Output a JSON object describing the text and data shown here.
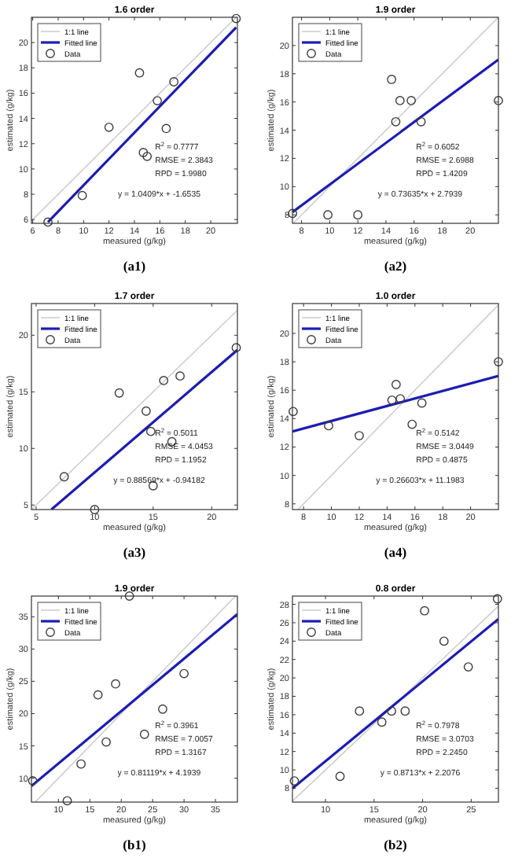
{
  "chart_data": [
    {
      "type": "scatter",
      "title": "1.6 order",
      "xlabel": "measured (g/kg)",
      "ylabel": "estimated (g/kg)",
      "xlim": [
        5.9,
        22.1
      ],
      "ylim": [
        5.7,
        22
      ],
      "xticks": [
        6,
        8,
        10,
        12,
        14,
        16,
        18,
        20
      ],
      "yticks": [
        6,
        8,
        10,
        12,
        14,
        16,
        18,
        20
      ],
      "legend": "top left",
      "annotations": [
        "R$^{2}$ = 0.7777",
        "RMSE = 2.3843",
        "RPD = 1.9980",
        "y = 1.0409*x + -1.6535",
        "(a1)"
      ],
      "series": [
        {
          "name": "1:1 line",
          "type": "line",
          "color": "#c8c8c8",
          "x": [
            5.9,
            22
          ],
          "values": [
            5.9,
            22
          ]
        },
        {
          "name": "Fitted line",
          "type": "line",
          "color": "#1c1cb4",
          "x": [
            7.2,
            22
          ],
          "values": [
            5.8,
            21.2
          ]
        },
        {
          "name": "Data",
          "type": "scatter",
          "marker": "circle",
          "color": "#3c3c3c",
          "x": [
            7.2,
            9.9,
            12.0,
            14.4,
            14.7,
            15.0,
            15.8,
            16.5,
            17.1,
            22.0
          ],
          "values": [
            5.8,
            7.9,
            13.3,
            17.6,
            11.3,
            11.0,
            15.4,
            13.2,
            16.9,
            21.9
          ]
        }
      ]
    },
    {
      "type": "scatter",
      "title": "1.9 order",
      "xlabel": "measured (g/kg)",
      "ylabel": "estimated (g/kg)",
      "xlim": [
        7.35,
        22
      ],
      "ylim": [
        7.4,
        22
      ],
      "xticks": [
        8,
        10,
        12,
        14,
        16,
        18,
        20
      ],
      "yticks": [
        8,
        10,
        12,
        14,
        16,
        18,
        20
      ],
      "legend": "top left",
      "annotations": [
        "R$^{2}$ = 0.6052",
        "RMSE = 2.6988",
        "RPD = 1.4209",
        "y = 0.73635*x + 2.7939",
        "(a2)"
      ],
      "series": [
        {
          "name": "1:1 line",
          "type": "line",
          "color": "#c8c8c8",
          "x": [
            7.4,
            22
          ],
          "values": [
            7.4,
            22
          ]
        },
        {
          "name": "Fitted line",
          "type": "line",
          "color": "#1c1cb4",
          "x": [
            7.36,
            22
          ],
          "values": [
            8.2,
            19.0
          ]
        },
        {
          "name": "Data",
          "type": "scatter",
          "marker": "circle",
          "color": "#3c3c3c",
          "x": [
            7.36,
            9.87,
            12.0,
            14.4,
            14.7,
            15.0,
            15.8,
            16.5,
            22.0
          ],
          "values": [
            8.1,
            8.0,
            8.0,
            17.6,
            14.6,
            16.1,
            16.1,
            14.6,
            16.1
          ]
        }
      ]
    },
    {
      "type": "scatter",
      "title": "1.7 order",
      "xlabel": "measured (g/kg)",
      "ylabel": "estimated (g/kg)",
      "xlim": [
        4.6,
        22.2
      ],
      "ylim": [
        4.6,
        22.8
      ],
      "xticks": [
        5,
        10,
        15,
        20
      ],
      "yticks": [
        5,
        10,
        15,
        20
      ],
      "legend": "top left",
      "annotations": [
        "R$^{2}$ = 0.5011",
        "RMSE = 4.0453",
        "RPD = 1.1952",
        "y = 0.88569*x + -0.94182",
        "(a3)"
      ],
      "series": [
        {
          "name": "1:1 line",
          "type": "line",
          "color": "#c8c8c8",
          "x": [
            4.6,
            22.2
          ],
          "values": [
            4.6,
            22.2
          ]
        },
        {
          "name": "Fitted line",
          "type": "line",
          "color": "#1c1cb4",
          "x": [
            6.3,
            22.2
          ],
          "values": [
            4.6,
            18.7
          ]
        },
        {
          "name": "Data",
          "type": "scatter",
          "marker": "circle",
          "color": "#3c3c3c",
          "x": [
            7.4,
            10.0,
            12.1,
            14.4,
            14.8,
            15.0,
            15.9,
            16.6,
            17.3,
            22.1
          ],
          "values": [
            7.5,
            4.6,
            14.9,
            13.3,
            11.5,
            6.7,
            16.0,
            10.6,
            16.4,
            18.9
          ]
        }
      ]
    },
    {
      "type": "scatter",
      "title": "1.0 order",
      "xlabel": "measured (g/kg)",
      "ylabel": "estimated (g/kg)",
      "xlim": [
        7.2,
        22
      ],
      "ylim": [
        7.6,
        22.1
      ],
      "xticks": [
        8,
        10,
        12,
        14,
        16,
        18,
        20
      ],
      "yticks": [
        8,
        10,
        12,
        14,
        16,
        18,
        20
      ],
      "legend": "top left",
      "annotations": [
        "R$^{2}$ = 0.5142",
        "RMSE = 3.0449",
        "RPD = 0.4875",
        "y = 0.26603*x + 11.1983",
        "(a4)"
      ],
      "series": [
        {
          "name": "1:1 line",
          "type": "line",
          "color": "#c8c8c8",
          "x": [
            7.6,
            22
          ],
          "values": [
            7.6,
            22
          ]
        },
        {
          "name": "Fitted line",
          "type": "line",
          "color": "#1c1cb4",
          "x": [
            7.2,
            22
          ],
          "values": [
            13.1,
            17.0
          ]
        },
        {
          "name": "Data",
          "type": "scatter",
          "marker": "circle",
          "color": "#3c3c3c",
          "x": [
            7.25,
            9.8,
            12.0,
            14.35,
            14.65,
            14.95,
            15.8,
            16.5,
            22.0
          ],
          "values": [
            14.5,
            13.5,
            12.8,
            15.3,
            16.4,
            15.4,
            13.6,
            15.1,
            18.0
          ]
        }
      ]
    },
    {
      "type": "scatter",
      "title": "1.9 order",
      "xlabel": "measured (g/kg)",
      "ylabel": "estimated (g/kg)",
      "xlim": [
        5.7,
        38.5
      ],
      "ylim": [
        6.3,
        38.2
      ],
      "xticks": [
        10,
        15,
        20,
        25,
        30,
        35
      ],
      "yticks": [
        10,
        15,
        20,
        25,
        30,
        35
      ],
      "legend": "top left",
      "annotations": [
        "R$^{2}$ = 0.3961",
        "RMSE = 7.0057",
        "RPD = 1.3167",
        "y = 0.81119*x + 4.1939",
        "(b1)"
      ],
      "series": [
        {
          "name": "1:1 line",
          "type": "line",
          "color": "#c8c8c8",
          "x": [
            6.3,
            38.2
          ],
          "values": [
            6.3,
            38.2
          ]
        },
        {
          "name": "Fitted line",
          "type": "line",
          "color": "#1c1cb4",
          "x": [
            5.7,
            38.5
          ],
          "values": [
            8.8,
            35.4
          ]
        },
        {
          "name": "Data",
          "type": "scatter",
          "marker": "circle",
          "color": "#3c3c3c",
          "x": [
            5.9,
            11.4,
            13.6,
            16.3,
            17.6,
            19.1,
            21.3,
            23.7,
            26.6,
            30.0
          ],
          "values": [
            9.6,
            6.5,
            12.2,
            22.9,
            15.6,
            24.6,
            38.2,
            16.8,
            20.7,
            26.2
          ]
        }
      ]
    },
    {
      "type": "scatter",
      "title": "0.8 order",
      "xlabel": "measured (g/kg)",
      "ylabel": "estimated (g/kg)",
      "xlim": [
        6.6,
        27.8
      ],
      "ylim": [
        6.5,
        28.9
      ],
      "xticks": [
        10,
        15,
        20,
        25
      ],
      "yticks": [
        8,
        10,
        12,
        14,
        16,
        18,
        20,
        22,
        24,
        26,
        28
      ],
      "legend": "top left",
      "annotations": [
        "R$^{2}$ = 0.7978",
        "RMSE = 3.0703",
        "RPD = 2.2450",
        "y = 0.8713*x + 2.2076",
        "(b2)"
      ],
      "series": [
        {
          "name": "1:1 line",
          "type": "line",
          "color": "#c8c8c8",
          "x": [
            6.6,
            27.8
          ],
          "values": [
            6.6,
            27.8
          ]
        },
        {
          "name": "Fitted line",
          "type": "line",
          "color": "#1c1cb4",
          "x": [
            6.6,
            27.8
          ],
          "values": [
            8.0,
            26.4
          ]
        },
        {
          "name": "Data",
          "type": "scatter",
          "marker": "circle",
          "color": "#3c3c3c",
          "x": [
            6.8,
            11.5,
            13.5,
            15.8,
            16.8,
            18.2,
            20.2,
            22.2,
            24.7,
            27.7
          ],
          "values": [
            8.8,
            9.3,
            16.4,
            15.2,
            16.4,
            16.4,
            27.3,
            24.0,
            21.2,
            28.6
          ]
        }
      ]
    }
  ]
}
